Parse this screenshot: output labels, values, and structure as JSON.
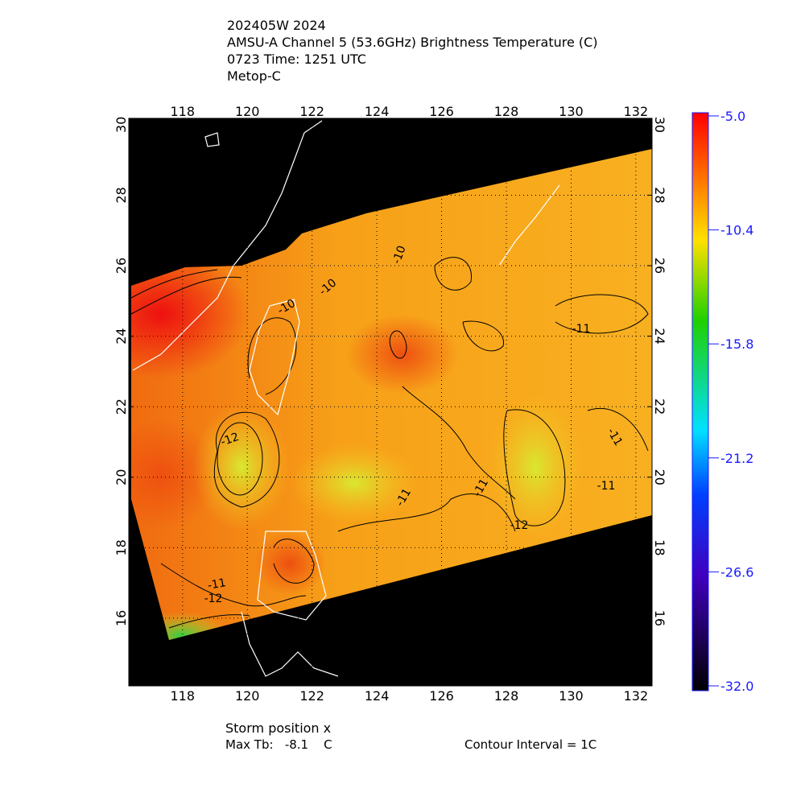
{
  "header": {
    "lines": [
      "202405W 2024",
      "AMSU-A Channel 5 (53.6GHz) Brightness Temperature (C)",
      "0723 Time: 1251 UTC",
      "Metop-C"
    ]
  },
  "map": {
    "lon_range": [
      116.34,
      132.5
    ],
    "lat_range": [
      14.08,
      30.18
    ],
    "lon_ticks": [
      118,
      120,
      122,
      124,
      126,
      128,
      130,
      132
    ],
    "lat_ticks": [
      16,
      18,
      20,
      22,
      24,
      26,
      28,
      30
    ],
    "contour_labels": [
      "-10",
      "-10",
      "-10",
      "-11",
      "-12",
      "-11",
      "-11",
      "-11",
      "-11",
      "-12",
      "-11",
      "-12"
    ]
  },
  "colorbar": {
    "range": [
      -32,
      -5
    ],
    "ticks": [
      {
        "value": -5,
        "label": "-5.0"
      },
      {
        "value": -10.4,
        "label": "-10.4"
      },
      {
        "value": -15.8,
        "label": "-15.8"
      },
      {
        "value": -21.2,
        "label": "-21.2"
      },
      {
        "value": -26.6,
        "label": "-26.6"
      },
      {
        "value": -32,
        "label": "-32.0"
      }
    ]
  },
  "footer": {
    "storm_position": "Storm position x",
    "max_tb": "Max Tb:   -8.1    C",
    "contour_interval": "Contour Interval = 1C"
  }
}
